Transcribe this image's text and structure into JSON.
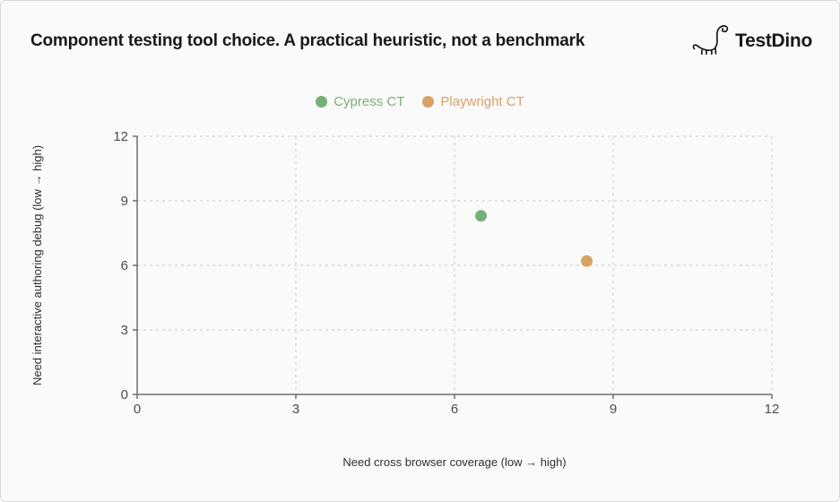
{
  "header": {
    "title": "Component testing tool choice. A practical heuristic, not a benchmark",
    "brand": "TestDino"
  },
  "chart_data": {
    "type": "scatter",
    "title": "Component testing tool choice. A practical heuristic, not a benchmark",
    "xlabel": "Need cross browser coverage (low → high)",
    "ylabel": "Need interactive authoring debug (low → high)",
    "xlim": [
      0,
      12
    ],
    "ylim": [
      0,
      12
    ],
    "xticks": [
      0,
      3,
      6,
      9,
      12
    ],
    "yticks": [
      0,
      3,
      6,
      9,
      12
    ],
    "grid": true,
    "grid_style": "dashed",
    "legend_position": "top-center",
    "series": [
      {
        "name": "Cypress CT",
        "color": "#74b274",
        "points": [
          {
            "x": 6.5,
            "y": 8.3
          }
        ]
      },
      {
        "name": "Playwright CT",
        "color": "#d7a263",
        "points": [
          {
            "x": 8.5,
            "y": 6.2
          }
        ]
      }
    ]
  },
  "colors": {
    "card_background": "#fafafa",
    "card_border": "#d9d9d9",
    "title_text": "#17191c",
    "axis_line": "#6e6e6e",
    "tick_label": "#4c4c4c",
    "axis_title": "#2f2f2f",
    "gridline": "#d4d4d4"
  }
}
